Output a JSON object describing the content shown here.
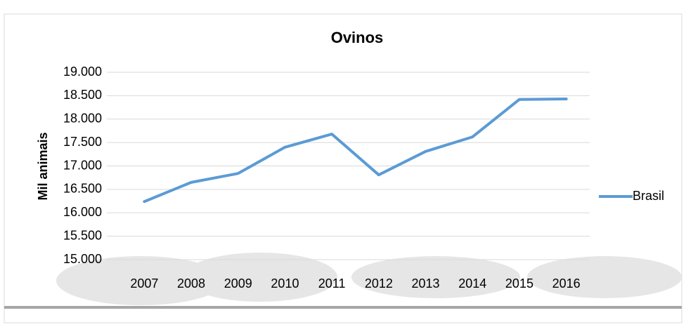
{
  "chart_data": {
    "type": "line",
    "title": "Ovinos",
    "y_label": "Mil animais",
    "categories": [
      "2007",
      "2008",
      "2009",
      "2010",
      "2011",
      "2012",
      "2013",
      "2014",
      "2015",
      "2016"
    ],
    "series": [
      {
        "name": "Brasil",
        "color": "#5b9bd5",
        "values": [
          16240,
          16650,
          16840,
          17400,
          17680,
          16810,
          17310,
          17620,
          18420,
          18430
        ]
      }
    ],
    "ylim": [
      15000,
      19000
    ],
    "yticks": [
      {
        "value": 15000,
        "label": "15.000"
      },
      {
        "value": 15500,
        "label": "15.500"
      },
      {
        "value": 16000,
        "label": "16.000"
      },
      {
        "value": 16500,
        "label": "16.500"
      },
      {
        "value": 17000,
        "label": "17.000"
      },
      {
        "value": 17500,
        "label": "17.500"
      },
      {
        "value": 18000,
        "label": "18.000"
      },
      {
        "value": 18500,
        "label": "18.500"
      },
      {
        "value": 19000,
        "label": "19.000"
      }
    ],
    "grid": true,
    "legend": "right"
  }
}
